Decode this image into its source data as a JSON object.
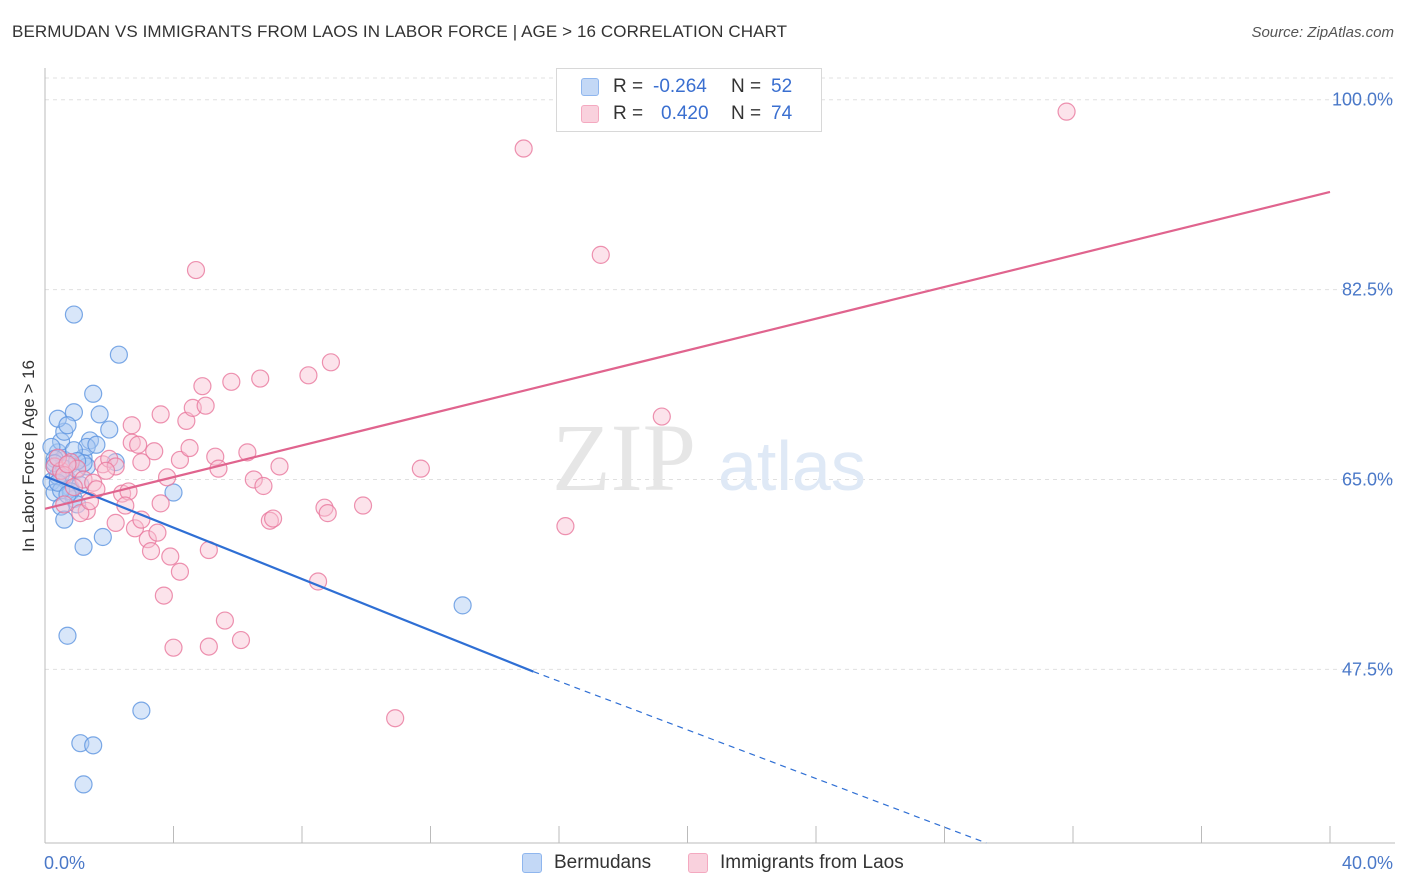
{
  "header": {
    "title": "BERMUDAN VS IMMIGRANTS FROM LAOS IN LABOR FORCE | AGE > 16 CORRELATION CHART",
    "source": "Source: ZipAtlas.com"
  },
  "watermark": {
    "zip": "ZIP",
    "atlas": "atlas"
  },
  "legend": {
    "rows": [
      {
        "r_label": "R =",
        "r_value": "-0.264",
        "n_label": "N =",
        "n_value": "52",
        "color": "#8fb6ee"
      },
      {
        "r_label": "R =",
        "r_value": "0.420",
        "n_label": "N =",
        "n_value": "74",
        "color": "#f4a9c0"
      }
    ]
  },
  "bottom_legend": {
    "items": [
      {
        "label": "Bermudans",
        "color": "#8fb6ee"
      },
      {
        "label": "Immigrants from Laos",
        "color": "#f4a9c0"
      }
    ]
  },
  "chart_data": {
    "type": "scatter",
    "title": "BERMUDAN VS IMMIGRANTS FROM LAOS IN LABOR FORCE | AGE > 16 CORRELATION CHART",
    "xlabel": "",
    "ylabel": "In Labor Force | Age > 16",
    "xlim": [
      0,
      40
    ],
    "ylim": [
      31.5,
      102
    ],
    "x_tick_labels": [
      "0.0%",
      "40.0%"
    ],
    "y_ticks": [
      47.5,
      65.0,
      82.5,
      100.0
    ],
    "y_tick_labels": [
      "47.5%",
      "65.0%",
      "82.5%",
      "100.0%"
    ],
    "grid": true,
    "legend_position": "top-center",
    "series": [
      {
        "name": "Bermudans",
        "color": "#5b93e0",
        "fill": "#a9c8f2",
        "r": -0.264,
        "n": 52,
        "trend": {
          "x0": 0,
          "y0": 65.3,
          "x1": 15.2,
          "y1": 47.3,
          "dash_x1": 29.3,
          "dash_y1": 31.5
        },
        "points": [
          [
            0.3,
            66.2
          ],
          [
            0.5,
            65.5
          ],
          [
            0.2,
            64.8
          ],
          [
            0.6,
            66.8
          ],
          [
            0.4,
            67.5
          ],
          [
            0.7,
            65.0
          ],
          [
            0.3,
            63.8
          ],
          [
            0.8,
            64.2
          ],
          [
            0.5,
            68.5
          ],
          [
            0.6,
            69.4
          ],
          [
            0.4,
            70.6
          ],
          [
            0.9,
            71.2
          ],
          [
            0.7,
            70.0
          ],
          [
            0.2,
            68.0
          ],
          [
            0.8,
            66.4
          ],
          [
            1.0,
            65.9
          ],
          [
            1.2,
            67.0
          ],
          [
            0.9,
            63.2
          ],
          [
            0.5,
            62.5
          ],
          [
            0.6,
            61.3
          ],
          [
            1.1,
            64.5
          ],
          [
            1.3,
            66.2
          ],
          [
            0.4,
            65.3
          ],
          [
            0.3,
            66.9
          ],
          [
            1.4,
            68.6
          ],
          [
            1.5,
            72.9
          ],
          [
            1.3,
            68.0
          ],
          [
            1.2,
            66.5
          ],
          [
            0.8,
            63.9
          ],
          [
            1.0,
            62.7
          ],
          [
            1.6,
            68.2
          ],
          [
            1.7,
            71.0
          ],
          [
            2.0,
            69.6
          ],
          [
            2.2,
            66.6
          ],
          [
            0.9,
            80.2
          ],
          [
            2.3,
            76.5
          ],
          [
            1.2,
            58.8
          ],
          [
            1.8,
            59.7
          ],
          [
            0.7,
            50.6
          ],
          [
            1.1,
            40.7
          ],
          [
            1.5,
            40.5
          ],
          [
            1.2,
            36.9
          ],
          [
            3.0,
            43.7
          ],
          [
            4.0,
            63.8
          ],
          [
            13.0,
            53.4
          ],
          [
            0.3,
            66.5
          ],
          [
            0.5,
            64.0
          ],
          [
            0.6,
            66.0
          ],
          [
            0.9,
            67.7
          ],
          [
            1.0,
            66.7
          ],
          [
            0.4,
            64.7
          ],
          [
            0.7,
            63.6
          ]
        ]
      },
      {
        "name": "Immigrants from Laos",
        "color": "#e8779c",
        "fill": "#f8c2d3",
        "r": 0.42,
        "n": 74,
        "trend": {
          "x0": 0,
          "y0": 62.3,
          "x1": 40,
          "y1": 91.5
        },
        "points": [
          [
            0.3,
            66.2
          ],
          [
            0.5,
            65.8
          ],
          [
            0.8,
            66.6
          ],
          [
            1.0,
            66.0
          ],
          [
            0.6,
            65.4
          ],
          [
            1.2,
            65.0
          ],
          [
            1.5,
            64.7
          ],
          [
            1.8,
            66.4
          ],
          [
            2.0,
            66.9
          ],
          [
            2.2,
            66.2
          ],
          [
            1.6,
            64.1
          ],
          [
            2.4,
            63.7
          ],
          [
            2.6,
            63.9
          ],
          [
            2.5,
            62.6
          ],
          [
            2.8,
            60.5
          ],
          [
            3.0,
            61.3
          ],
          [
            3.2,
            59.5
          ],
          [
            3.3,
            58.4
          ],
          [
            3.5,
            60.1
          ],
          [
            3.6,
            62.8
          ],
          [
            3.8,
            65.2
          ],
          [
            2.7,
            68.4
          ],
          [
            2.7,
            70.0
          ],
          [
            3.0,
            66.6
          ],
          [
            3.4,
            67.6
          ],
          [
            3.6,
            71.0
          ],
          [
            3.7,
            54.3
          ],
          [
            3.9,
            57.9
          ],
          [
            4.0,
            49.5
          ],
          [
            4.2,
            56.5
          ],
          [
            4.2,
            66.8
          ],
          [
            4.4,
            70.4
          ],
          [
            4.5,
            67.9
          ],
          [
            4.6,
            71.6
          ],
          [
            4.7,
            84.3
          ],
          [
            4.9,
            73.6
          ],
          [
            5.0,
            71.8
          ],
          [
            5.1,
            49.6
          ],
          [
            5.1,
            58.5
          ],
          [
            5.3,
            67.1
          ],
          [
            5.4,
            66.0
          ],
          [
            5.6,
            52.0
          ],
          [
            5.8,
            74.0
          ],
          [
            6.1,
            50.2
          ],
          [
            6.3,
            67.5
          ],
          [
            6.5,
            65.0
          ],
          [
            6.7,
            74.3
          ],
          [
            6.8,
            64.4
          ],
          [
            7.0,
            61.2
          ],
          [
            7.1,
            61.4
          ],
          [
            7.3,
            66.2
          ],
          [
            8.2,
            74.6
          ],
          [
            8.5,
            55.6
          ],
          [
            8.7,
            62.4
          ],
          [
            8.8,
            61.9
          ],
          [
            8.9,
            75.8
          ],
          [
            9.9,
            62.6
          ],
          [
            10.9,
            43.0
          ],
          [
            11.7,
            66.0
          ],
          [
            14.9,
            95.5
          ],
          [
            16.2,
            60.7
          ],
          [
            17.3,
            85.7
          ],
          [
            19.2,
            70.8
          ],
          [
            31.8,
            98.9
          ],
          [
            0.4,
            67.0
          ],
          [
            0.9,
            64.3
          ],
          [
            1.3,
            62.1
          ],
          [
            1.9,
            65.8
          ],
          [
            1.1,
            61.9
          ],
          [
            2.2,
            61.0
          ],
          [
            0.7,
            66.4
          ],
          [
            2.9,
            68.2
          ],
          [
            0.6,
            62.7
          ],
          [
            1.4,
            63.0
          ]
        ]
      }
    ]
  }
}
